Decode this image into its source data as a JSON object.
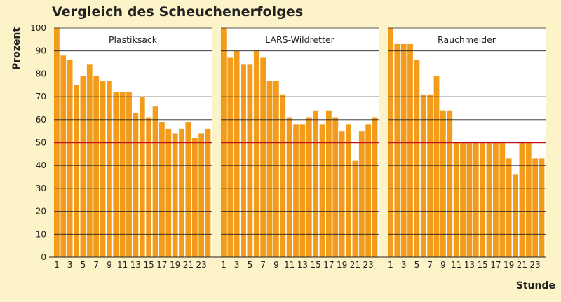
{
  "chart_data": {
    "type": "bar",
    "title": "Vergleich des Scheuchenerfolges",
    "xlabel": "Stunde",
    "ylabel": "Prozent",
    "ylim": [
      0,
      100
    ],
    "yticks": [
      0,
      10,
      20,
      30,
      40,
      50,
      60,
      70,
      80,
      90,
      100
    ],
    "xtick_labels": [
      "1",
      "3",
      "5",
      "7",
      "9",
      "11",
      "13",
      "15",
      "17",
      "19",
      "21",
      "23"
    ],
    "reference_line": 50,
    "hours": [
      1,
      2,
      3,
      4,
      5,
      6,
      7,
      8,
      9,
      10,
      11,
      12,
      13,
      14,
      15,
      16,
      17,
      18,
      19,
      20,
      21,
      22,
      23,
      24
    ],
    "series": [
      {
        "name": "Plastiksack",
        "values": [
          100,
          88,
          86,
          75,
          79,
          84,
          79,
          77,
          77,
          72,
          72,
          72,
          63,
          70,
          61,
          66,
          59,
          56,
          54,
          56,
          59,
          52,
          54,
          56
        ]
      },
      {
        "name": "LARS-Wildretter",
        "values": [
          100,
          87,
          90,
          84,
          84,
          90,
          87,
          77,
          77,
          71,
          61,
          58,
          58,
          61,
          64,
          58,
          64,
          61,
          55,
          58,
          42,
          55,
          58,
          61
        ]
      },
      {
        "name": "Rauchmelder",
        "values": [
          100,
          93,
          93,
          93,
          86,
          71,
          71,
          79,
          64,
          64,
          50,
          50,
          50,
          50,
          50,
          50,
          50,
          50,
          43,
          36,
          50,
          50,
          43,
          43
        ]
      }
    ],
    "grid": true,
    "colors": {
      "bar": "#f39c1c",
      "reference_line": "#c0121a",
      "grid": "#222222",
      "panel": "#ffffff",
      "background": "#fdf3c8"
    }
  }
}
